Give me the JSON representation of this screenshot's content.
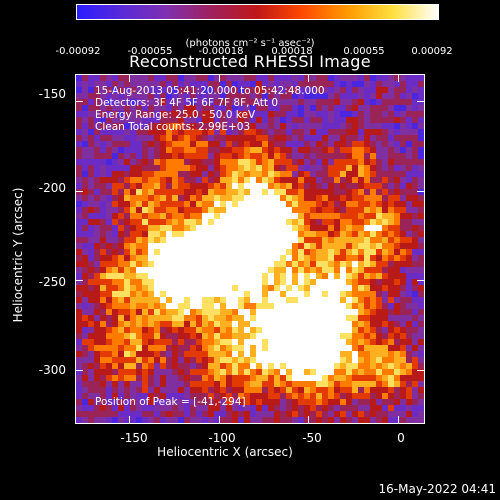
{
  "colorbar": {
    "tick_labels": [
      "-0.00092",
      "-0.00055",
      "-0.00018",
      "0.00018",
      "0.00055",
      "0.00092"
    ],
    "units": "(photons cm⁻² s⁻¹ asec⁻²)",
    "stops": [
      "#2a1dff",
      "#5a2ad8",
      "#8030b0",
      "#a0205a",
      "#c01818",
      "#ff4a00",
      "#ff9a00",
      "#ffe040",
      "#ffffff"
    ]
  },
  "title": "Reconstructed RHESSI Image",
  "annotations": {
    "time": "15-Aug-2013 05:41:20.000 to 05:42:48.000",
    "detectors": "Detectors: 3F 4F 5F 6F 7F 8F, Att 0",
    "energy": "Energy Range: 25.0 - 50.0 keV",
    "clean": "Clean    Total counts: 2.99E+03",
    "peak": "Position of Peak = [-41,-294]"
  },
  "axes": {
    "xlabel": "Heliocentric X (arcsec)",
    "ylabel": "Heliocentric Y (arcsec)",
    "x_ticks": [
      "-150",
      "-100",
      "-50",
      "0"
    ],
    "y_ticks": [
      "-150",
      "-200",
      "-250",
      "-300"
    ],
    "xlim": [
      -180,
      15
    ],
    "ylim": [
      -330,
      -135
    ]
  },
  "footer": "16-May-2022 04:41"
}
